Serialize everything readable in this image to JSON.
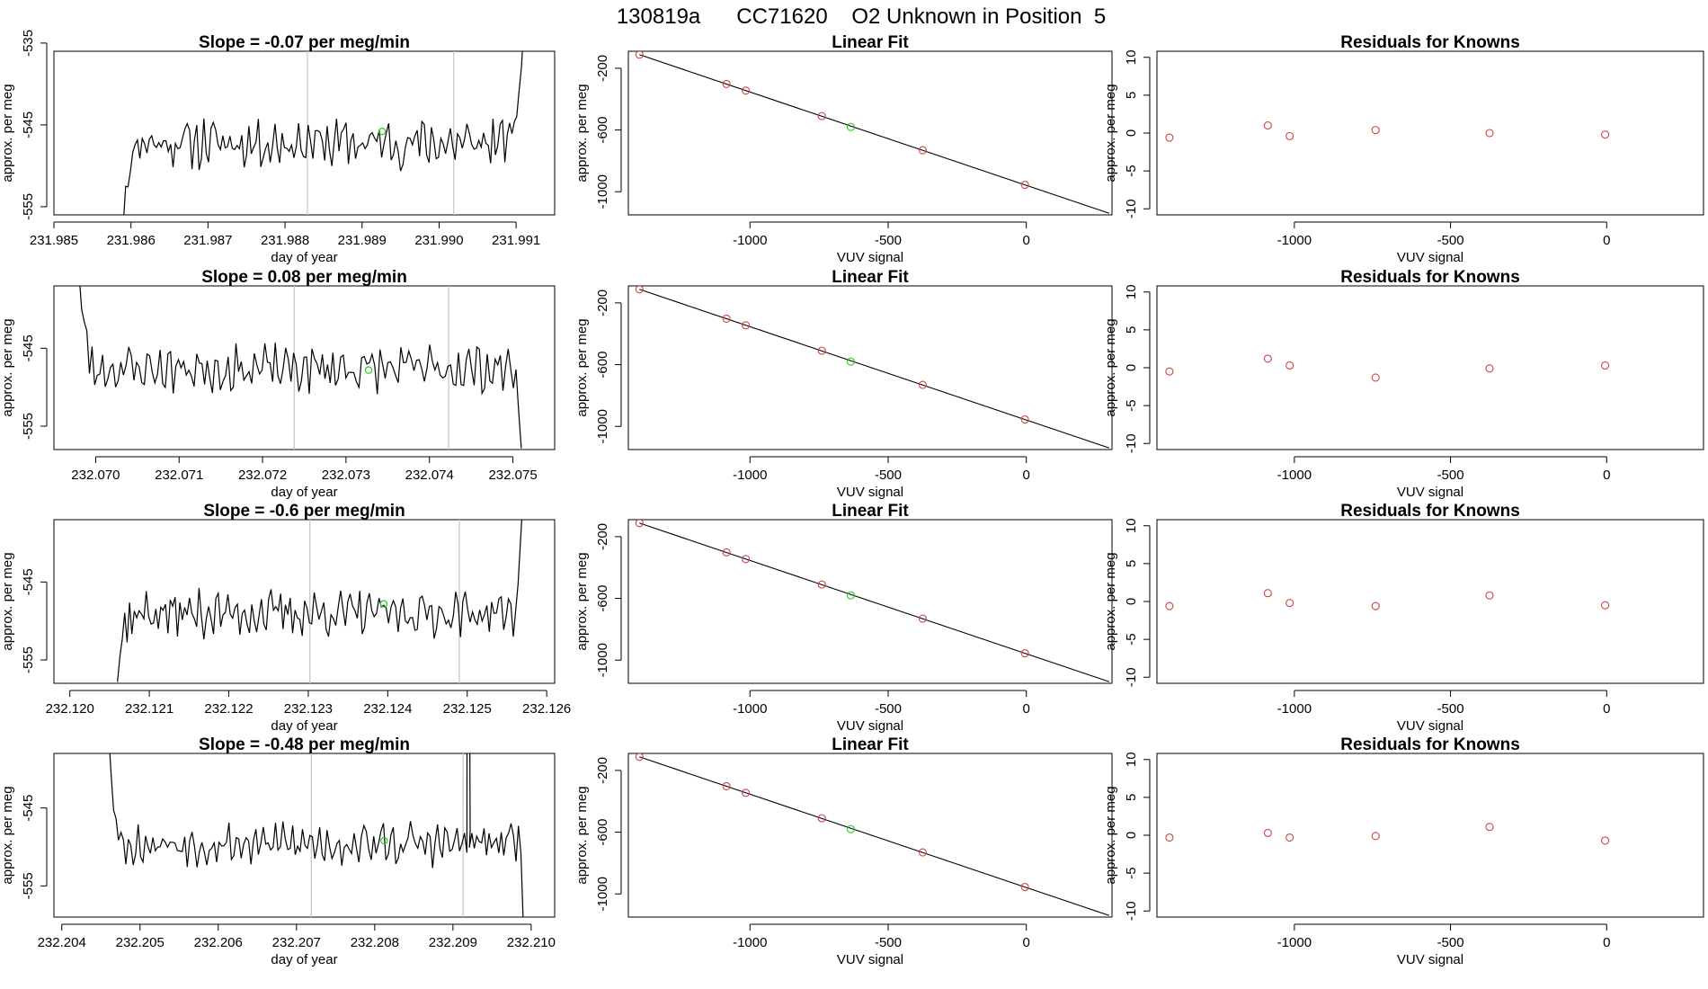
{
  "figure_title": "130819a      CC71620    O2 Unknown in Position  5",
  "colors": {
    "line": "#000000",
    "marker_unknown": "#22cc22",
    "marker_known": "#cc4444",
    "vline": "#c8c8c8"
  },
  "chart_data": [
    {
      "type": "line",
      "title": "Slope =  -0.07  per meg/min",
      "xlabel": "day of year",
      "ylabel": "approx. per meg",
      "xlim": [
        231.985,
        231.9915
      ],
      "ylim": [
        -556,
        -536
      ],
      "x_ticks": [
        231.985,
        231.986,
        231.987,
        231.988,
        231.989,
        231.99,
        231.991
      ],
      "x_tick_labels": [
        "231.985",
        "231.986",
        "231.987",
        "231.988",
        "231.989",
        "231.990",
        "231.991"
      ],
      "y_ticks": [
        -555,
        -545,
        -535
      ],
      "y_tick_labels": [
        "-555",
        "-545",
        "-535"
      ],
      "t_start": 231.9859,
      "t_end": 231.9911,
      "base": -547.2,
      "amp": 2.3,
      "seed": 11,
      "start": [
        -557,
        -552,
        -553,
        -551
      ],
      "end": [
        -546,
        -545,
        -544,
        -541,
        -538,
        -533
      ],
      "vlines": [
        231.98829,
        231.99019
      ],
      "point": {
        "x": 231.98926,
        "y": -545.8
      }
    },
    {
      "type": "line",
      "title": "Slope =  0.08  per meg/min",
      "xlabel": "day of year",
      "ylabel": "approx. per meg",
      "xlim": [
        232.0695,
        232.0755
      ],
      "ylim": [
        -558,
        -537
      ],
      "x_ticks": [
        232.07,
        232.071,
        232.072,
        232.073,
        232.074,
        232.075
      ],
      "x_tick_labels": [
        "232.070",
        "232.071",
        "232.072",
        "232.073",
        "232.074",
        "232.075"
      ],
      "y_ticks": [
        -555,
        -545
      ],
      "y_tick_labels": [
        "-555",
        "-545"
      ],
      "t_start": 232.0698,
      "t_end": 232.0751,
      "base": -547.6,
      "amp": 2.2,
      "seed": 23,
      "start": [
        -535,
        -540,
        -542,
        -543
      ],
      "end": [
        -548,
        -553,
        -558
      ],
      "vlines": [
        232.07238,
        232.07423
      ],
      "point": {
        "x": 232.07327,
        "y": -547.8
      }
    },
    {
      "type": "line",
      "title": "Slope =  -0.6  per meg/min",
      "xlabel": "day of year",
      "ylabel": "approx. per meg",
      "xlim": [
        232.1198,
        232.1261
      ],
      "ylim": [
        -558,
        -537
      ],
      "x_ticks": [
        232.12,
        232.121,
        232.122,
        232.123,
        232.124,
        232.125,
        232.126
      ],
      "x_tick_labels": [
        "232.120",
        "232.121",
        "232.122",
        "232.123",
        "232.124",
        "232.125",
        "232.126"
      ],
      "y_ticks": [
        -555,
        -545
      ],
      "y_tick_labels": [
        "-555",
        "-545"
      ],
      "t_start": 232.1206,
      "t_end": 232.1257,
      "base": -549.0,
      "amp": 2.1,
      "seed": 37,
      "start": [
        -558,
        -554,
        -552,
        -549,
        -553
      ],
      "end": [
        -549,
        -545,
        -540,
        -535
      ],
      "vlines": [
        232.12302,
        232.1249
      ],
      "point": {
        "x": 232.12395,
        "y": -547.8
      }
    },
    {
      "type": "line",
      "title": "Slope =  -0.48  per meg/min",
      "xlabel": "day of year",
      "ylabel": "approx. per meg",
      "xlim": [
        232.2039,
        232.2103
      ],
      "ylim": [
        -559,
        -538
      ],
      "x_ticks": [
        232.204,
        232.205,
        232.206,
        232.207,
        232.208,
        232.209,
        232.21
      ],
      "x_tick_labels": [
        "232.204",
        "232.205",
        "232.206",
        "232.207",
        "232.208",
        "232.209",
        "232.210"
      ],
      "y_ticks": [
        -555,
        -545
      ],
      "y_tick_labels": [
        "-555",
        "-545"
      ],
      "t_start": 232.2046,
      "t_end": 232.2099,
      "base": -549.6,
      "amp": 2.0,
      "seed": 53,
      "start": [
        -535,
        -541,
        -545,
        -546
      ],
      "end": [
        -547,
        -551,
        -560
      ],
      "vlines": [
        232.20719,
        232.20913
      ],
      "spike": {
        "x": 232.2092,
        "y": -535
      },
      "point": {
        "x": 232.20812,
        "y": -549.2
      }
    },
    {
      "type": "scatter",
      "title": "Linear Fit",
      "xlabel": "VUV signal",
      "ylabel": "approx. per meg",
      "xlim": [
        -1440,
        310
      ],
      "ylim": [
        -1150,
        -90
      ],
      "x_ticks": [
        -1000,
        -500,
        0
      ],
      "x_tick_labels": [
        "-1000",
        "-500",
        "0"
      ],
      "y_ticks": [
        -1000,
        -600,
        -200
      ],
      "y_tick_labels": [
        "-1000",
        "-600",
        "-200"
      ],
      "fit_line": {
        "x": [
          -1400,
          300
        ],
        "y": [
          -112,
          -1140
        ]
      },
      "known": {
        "x": [
          -1400,
          -1085,
          -1015,
          -740,
          -375,
          -5
        ],
        "y": [
          -112,
          -302,
          -345,
          -510,
          -731,
          -955
        ]
      },
      "unknown": {
        "x": [
          -635
        ],
        "y": [
          -580
        ]
      }
    },
    {
      "type": "scatter",
      "title": "Linear Fit",
      "xlabel": "VUV signal",
      "ylabel": "approx. per meg",
      "xlim": [
        -1440,
        310
      ],
      "ylim": [
        -1150,
        -90
      ],
      "x_ticks": [
        -1000,
        -500,
        0
      ],
      "x_tick_labels": [
        "-1000",
        "-500",
        "0"
      ],
      "y_ticks": [
        -1000,
        -600,
        -200
      ],
      "y_tick_labels": [
        "-1000",
        "-600",
        "-200"
      ],
      "fit_line": {
        "x": [
          -1400,
          300
        ],
        "y": [
          -112,
          -1140
        ]
      },
      "known": {
        "x": [
          -1400,
          -1085,
          -1015,
          -740,
          -375,
          -5
        ],
        "y": [
          -112,
          -302,
          -345,
          -510,
          -731,
          -955
        ]
      },
      "unknown": {
        "x": [
          -635
        ],
        "y": [
          -580
        ]
      }
    },
    {
      "type": "scatter",
      "title": "Linear Fit",
      "xlabel": "VUV signal",
      "ylabel": "approx. per meg",
      "xlim": [
        -1440,
        310
      ],
      "ylim": [
        -1150,
        -90
      ],
      "x_ticks": [
        -1000,
        -500,
        0
      ],
      "x_tick_labels": [
        "-1000",
        "-500",
        "0"
      ],
      "y_ticks": [
        -1000,
        -600,
        -200
      ],
      "y_tick_labels": [
        "-1000",
        "-600",
        "-200"
      ],
      "fit_line": {
        "x": [
          -1400,
          300
        ],
        "y": [
          -112,
          -1140
        ]
      },
      "known": {
        "x": [
          -1400,
          -1085,
          -1015,
          -740,
          -375,
          -5
        ],
        "y": [
          -112,
          -302,
          -345,
          -510,
          -731,
          -955
        ]
      },
      "unknown": {
        "x": [
          -635
        ],
        "y": [
          -580
        ]
      }
    },
    {
      "type": "scatter",
      "title": "Linear Fit",
      "xlabel": "VUV signal",
      "ylabel": "approx. per meg",
      "xlim": [
        -1440,
        310
      ],
      "ylim": [
        -1150,
        -90
      ],
      "x_ticks": [
        -1000,
        -500,
        0
      ],
      "x_tick_labels": [
        "-1000",
        "-500",
        "0"
      ],
      "y_ticks": [
        -1000,
        -600,
        -200
      ],
      "y_tick_labels": [
        "-1000",
        "-600",
        "-200"
      ],
      "fit_line": {
        "x": [
          -1400,
          300
        ],
        "y": [
          -112,
          -1140
        ]
      },
      "known": {
        "x": [
          -1400,
          -1085,
          -1015,
          -740,
          -375,
          -5
        ],
        "y": [
          -112,
          -302,
          -345,
          -510,
          -731,
          -955
        ]
      },
      "unknown": {
        "x": [
          -635
        ],
        "y": [
          -580
        ]
      }
    },
    {
      "type": "scatter",
      "title": "Residuals for Knowns",
      "xlabel": "VUV signal",
      "ylabel": "approx. per meg",
      "xlim": [
        -1440,
        310
      ],
      "ylim": [
        -10.8,
        10.8
      ],
      "x_ticks": [
        -1000,
        -500,
        0
      ],
      "x_tick_labels": [
        "-1000",
        "-500",
        "0"
      ],
      "y_ticks": [
        -10,
        -5,
        0,
        5,
        10
      ],
      "y_tick_labels": [
        "-10",
        "-5",
        "0",
        "5",
        "10"
      ],
      "points": {
        "x": [
          -1400,
          -1085,
          -1015,
          -740,
          -375,
          -5
        ],
        "y": [
          -0.6,
          1.0,
          -0.4,
          0.4,
          0.0,
          -0.2
        ]
      }
    },
    {
      "type": "scatter",
      "title": "Residuals for Knowns",
      "xlabel": "VUV signal",
      "ylabel": "approx. per meg",
      "xlim": [
        -1440,
        310
      ],
      "ylim": [
        -10.8,
        10.8
      ],
      "x_ticks": [
        -1000,
        -500,
        0
      ],
      "x_tick_labels": [
        "-1000",
        "-500",
        "0"
      ],
      "y_ticks": [
        -10,
        -5,
        0,
        5,
        10
      ],
      "y_tick_labels": [
        "-10",
        "-5",
        "0",
        "5",
        "10"
      ],
      "points": {
        "x": [
          -1400,
          -1085,
          -1015,
          -740,
          -375,
          -5
        ],
        "y": [
          -0.5,
          1.2,
          0.3,
          -1.3,
          -0.1,
          0.3
        ]
      }
    },
    {
      "type": "scatter",
      "title": "Residuals for Knowns",
      "xlabel": "VUV signal",
      "ylabel": "approx. per meg",
      "xlim": [
        -1440,
        310
      ],
      "ylim": [
        -10.8,
        10.8
      ],
      "x_ticks": [
        -1000,
        -500,
        0
      ],
      "x_tick_labels": [
        "-1000",
        "-500",
        "0"
      ],
      "y_ticks": [
        -10,
        -5,
        0,
        5,
        10
      ],
      "y_tick_labels": [
        "-10",
        "-5",
        "0",
        "5",
        "10"
      ],
      "points": {
        "x": [
          -1400,
          -1085,
          -1015,
          -740,
          -375,
          -5
        ],
        "y": [
          -0.6,
          1.1,
          -0.2,
          -0.6,
          0.8,
          -0.5
        ]
      }
    },
    {
      "type": "scatter",
      "title": "Residuals for Knowns",
      "xlabel": "VUV signal",
      "ylabel": "approx. per meg",
      "xlim": [
        -1440,
        310
      ],
      "ylim": [
        -10.8,
        10.8
      ],
      "x_ticks": [
        -1000,
        -500,
        0
      ],
      "x_tick_labels": [
        "-1000",
        "-500",
        "0"
      ],
      "y_ticks": [
        -10,
        -5,
        0,
        5,
        10
      ],
      "y_tick_labels": [
        "-10",
        "-5",
        "0",
        "5",
        "10"
      ],
      "points": {
        "x": [
          -1400,
          -1085,
          -1015,
          -740,
          -375,
          -5
        ],
        "y": [
          -0.3,
          0.3,
          -0.3,
          -0.1,
          1.1,
          -0.7
        ]
      }
    }
  ]
}
